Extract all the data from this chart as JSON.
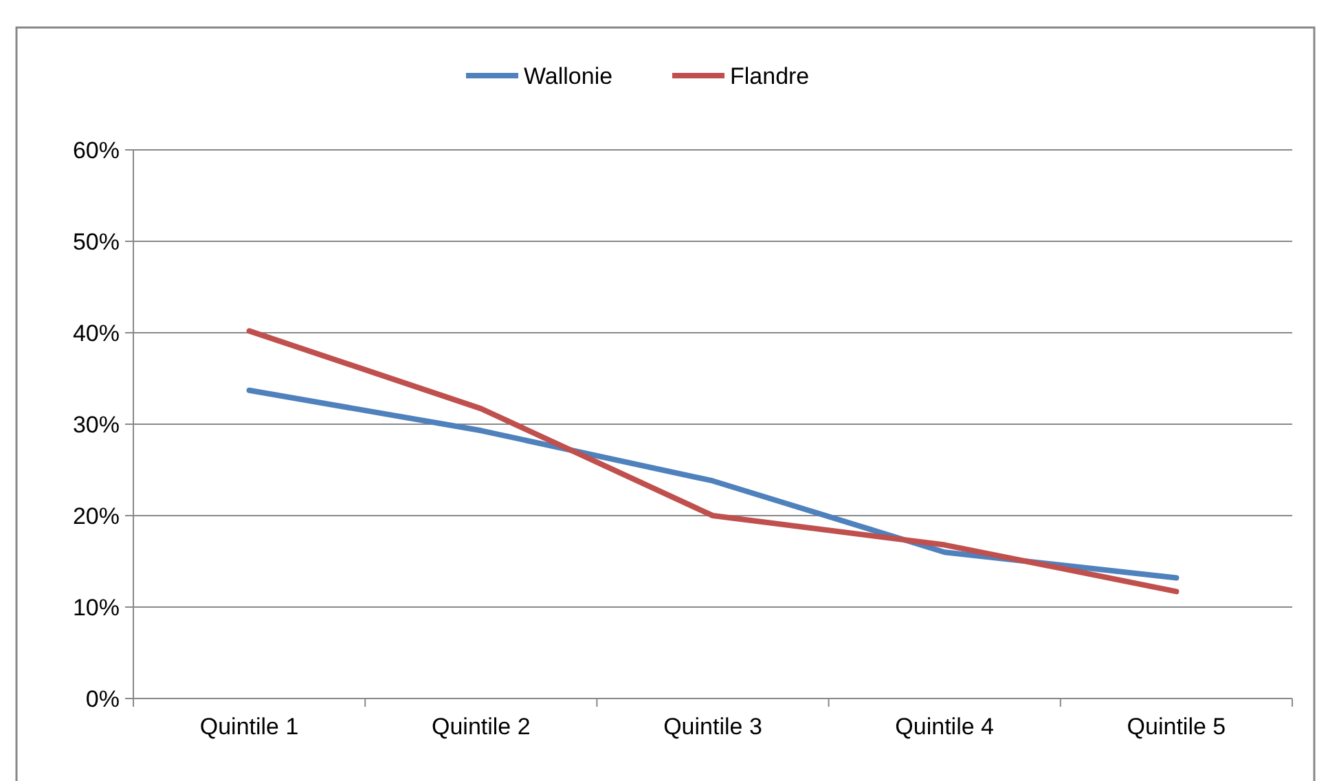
{
  "chart_data": {
    "type": "line",
    "categories": [
      "Quintile 1",
      "Quintile 2",
      "Quintile 3",
      "Quintile 4",
      "Quintile 5"
    ],
    "series": [
      {
        "name": "Wallonie",
        "color": "#4f81bd",
        "values": [
          33.7,
          29.3,
          23.8,
          16,
          13.2
        ]
      },
      {
        "name": "Flandre",
        "color": "#c0504d",
        "values": [
          40.2,
          31.7,
          20,
          16.8,
          11.7
        ]
      }
    ],
    "ylim": [
      0,
      60
    ],
    "yticks": [
      {
        "value": 0,
        "label": "0%"
      },
      {
        "value": 10,
        "label": "10%"
      },
      {
        "value": 20,
        "label": "20%"
      },
      {
        "value": 30,
        "label": "30%"
      },
      {
        "value": 40,
        "label": "40%"
      },
      {
        "value": 50,
        "label": "50%"
      },
      {
        "value": 60,
        "label": "60%"
      }
    ],
    "grid": "y",
    "legend": "top",
    "marker": "none",
    "line_style": "solid"
  }
}
